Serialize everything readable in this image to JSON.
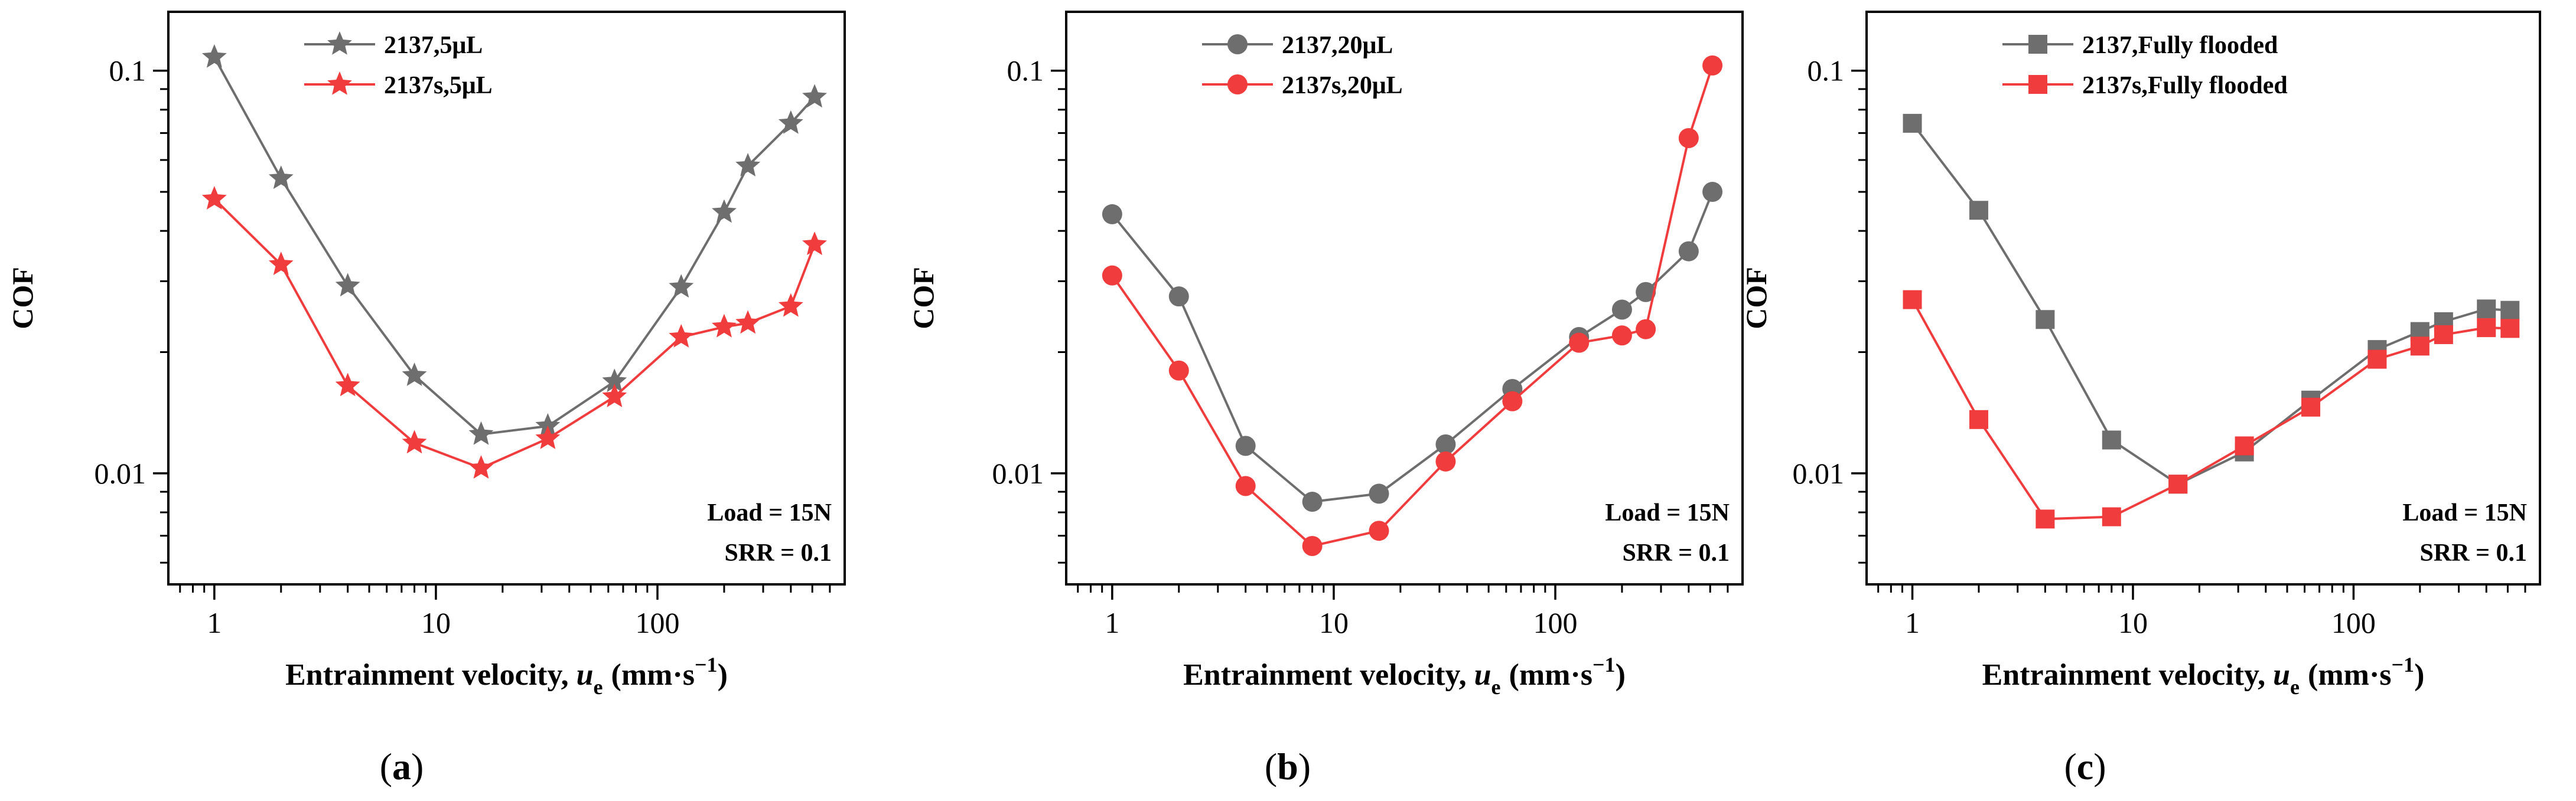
{
  "chart_data": [
    {
      "type": "line",
      "panel_label": "a",
      "xlabel_main": "Entrainment velocity, ",
      "xlabel_var": "u",
      "xlabel_sub": "e",
      "xlabel_units": "(mm·s",
      "xlabel_exp": "−1",
      "xlabel_close": ")",
      "ylabel": "COF",
      "x_scale": "log",
      "y_scale": "log",
      "xlim": [
        0.62,
        700
      ],
      "ylim": [
        0.0053,
        0.14
      ],
      "x_ticks": [
        {
          "value": 1,
          "label": "1"
        },
        {
          "value": 10,
          "label": "10"
        },
        {
          "value": 100,
          "label": "100"
        }
      ],
      "y_ticks": [
        {
          "value": 0.01,
          "label": "0.01"
        },
        {
          "value": 0.1,
          "label": "0.1"
        }
      ],
      "legend_position": "top-left",
      "annotations": [
        "Load = 15N",
        "SRR = 0.1"
      ],
      "marker": "star",
      "series": [
        {
          "name": "2137,5μL",
          "color": "#6e6e6e",
          "x": [
            1,
            2,
            4,
            8,
            16,
            32,
            64,
            128,
            200,
            256,
            400,
            512
          ],
          "y": [
            0.108,
            0.054,
            0.0292,
            0.0175,
            0.0125,
            0.0131,
            0.0169,
            0.029,
            0.0445,
            0.058,
            0.074,
            0.086
          ]
        },
        {
          "name": "2137s,5μL",
          "color": "#f03c3c",
          "x": [
            1,
            2,
            4,
            8,
            16,
            32,
            64,
            128,
            200,
            256,
            400,
            512
          ],
          "y": [
            0.048,
            0.033,
            0.0165,
            0.0119,
            0.0103,
            0.0122,
            0.0155,
            0.0218,
            0.0231,
            0.0236,
            0.026,
            0.037
          ]
        }
      ]
    },
    {
      "type": "line",
      "panel_label": "b",
      "xlabel_main": "Entrainment velocity, ",
      "xlabel_var": "u",
      "xlabel_sub": "e",
      "xlabel_units": "(mm·s",
      "xlabel_exp": "−1",
      "xlabel_close": ")",
      "ylabel": "COF",
      "x_scale": "log",
      "y_scale": "log",
      "xlim": [
        0.62,
        700
      ],
      "ylim": [
        0.0053,
        0.14
      ],
      "x_ticks": [
        {
          "value": 1,
          "label": "1"
        },
        {
          "value": 10,
          "label": "10"
        },
        {
          "value": 100,
          "label": "100"
        }
      ],
      "y_ticks": [
        {
          "value": 0.01,
          "label": "0.01"
        },
        {
          "value": 0.1,
          "label": "0.1"
        }
      ],
      "legend_position": "top-left",
      "annotations": [
        "Load = 15N",
        "SRR = 0.1"
      ],
      "marker": "circle",
      "series": [
        {
          "name": "2137,20μL",
          "color": "#6e6e6e",
          "x": [
            1,
            2,
            4,
            8,
            16,
            32,
            64,
            128,
            200,
            256,
            400,
            512
          ],
          "y": [
            0.044,
            0.0275,
            0.0117,
            0.0085,
            0.0089,
            0.0118,
            0.0162,
            0.0218,
            0.0255,
            0.0282,
            0.0356,
            0.05
          ]
        },
        {
          "name": "2137s,20μL",
          "color": "#f03c3c",
          "x": [
            1,
            2,
            4,
            8,
            16,
            32,
            64,
            128,
            200,
            256,
            400,
            512
          ],
          "y": [
            0.031,
            0.018,
            0.0093,
            0.0066,
            0.0072,
            0.0107,
            0.0151,
            0.0211,
            0.022,
            0.0228,
            0.068,
            0.103
          ]
        }
      ]
    },
    {
      "type": "line",
      "panel_label": "c",
      "xlabel_main": "Entrainment velocity, ",
      "xlabel_var": "u",
      "xlabel_sub": "e",
      "xlabel_units": "(mm·s",
      "xlabel_exp": "−1",
      "xlabel_close": ")",
      "ylabel": "COF",
      "x_scale": "log",
      "y_scale": "log",
      "xlim": [
        0.62,
        700
      ],
      "ylim": [
        0.0053,
        0.14
      ],
      "x_ticks": [
        {
          "value": 1,
          "label": "1"
        },
        {
          "value": 10,
          "label": "10"
        },
        {
          "value": 100,
          "label": "100"
        }
      ],
      "y_ticks": [
        {
          "value": 0.01,
          "label": "0.01"
        },
        {
          "value": 0.1,
          "label": "0.1"
        }
      ],
      "legend_position": "top-left",
      "annotations": [
        "Load = 15N",
        "SRR = 0.1"
      ],
      "marker": "square",
      "series": [
        {
          "name": "2137,Fully flooded",
          "color": "#6e6e6e",
          "x": [
            1,
            2,
            4,
            8,
            16,
            32,
            64,
            128,
            200,
            256,
            400,
            512
          ],
          "y": [
            0.074,
            0.045,
            0.0241,
            0.0121,
            0.0094,
            0.0113,
            0.0152,
            0.0203,
            0.0225,
            0.0238,
            0.0256,
            0.0254
          ]
        },
        {
          "name": "2137s,Fully flooded",
          "color": "#f03c3c",
          "x": [
            1,
            2,
            4,
            8,
            16,
            32,
            64,
            128,
            200,
            256,
            400,
            512
          ],
          "y": [
            0.027,
            0.0136,
            0.0077,
            0.0078,
            0.0094,
            0.0117,
            0.0146,
            0.0192,
            0.0207,
            0.0221,
            0.023,
            0.0229
          ]
        }
      ]
    }
  ]
}
